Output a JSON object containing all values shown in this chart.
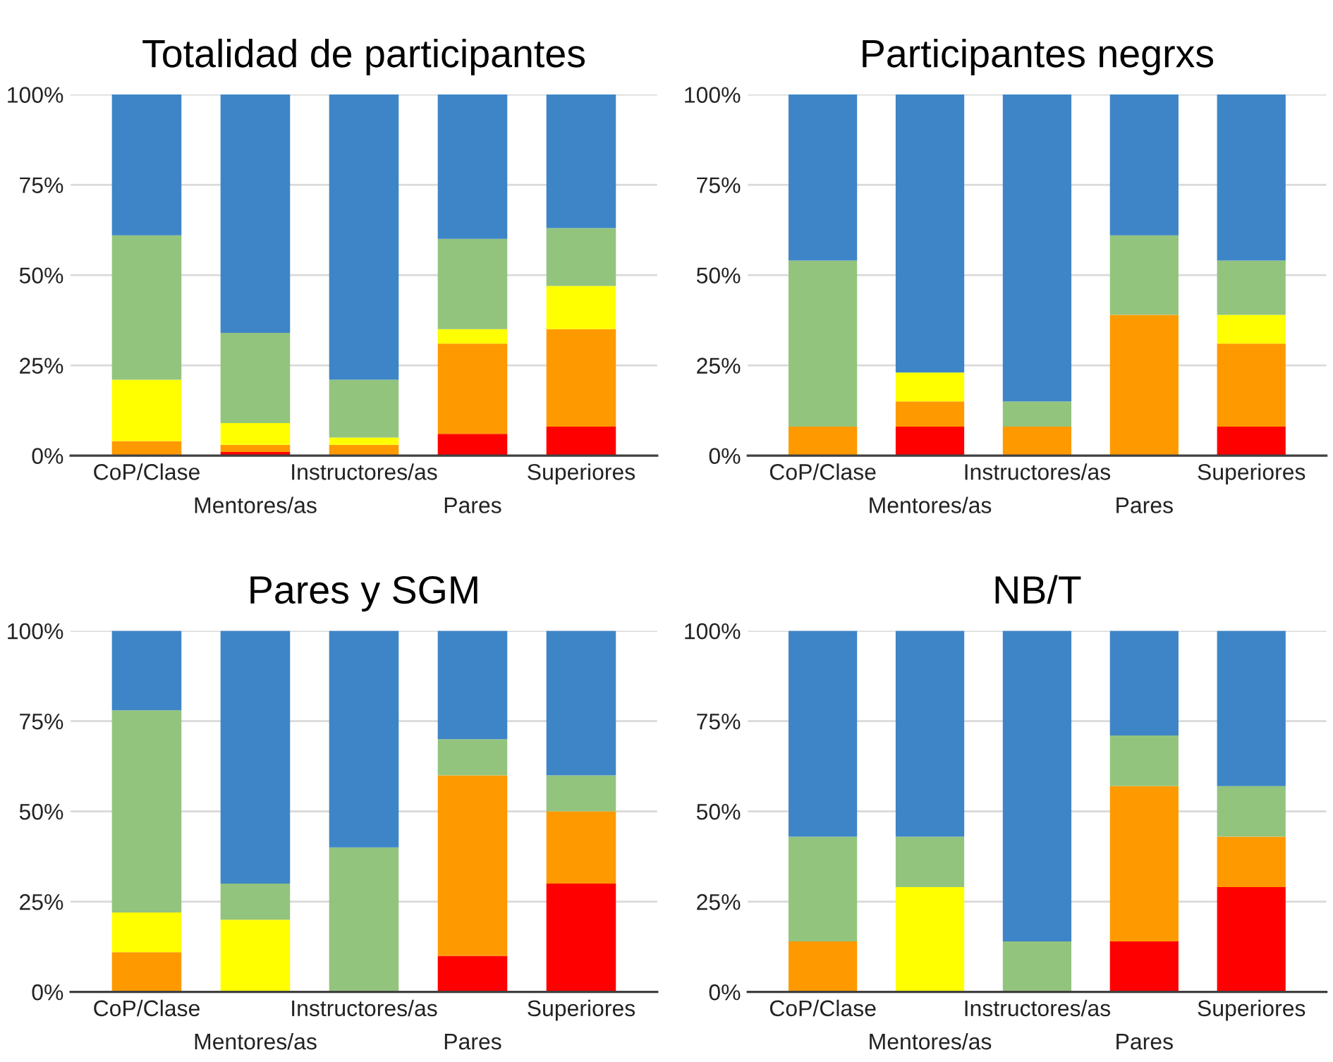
{
  "chart_data": [
    {
      "type": "bar",
      "stacked": true,
      "title": "Totalidad de participantes",
      "categories": [
        "CoP/Clase",
        "Mentores/as",
        "Instructores/as",
        "Pares",
        "Superiores"
      ],
      "ylim": [
        0,
        100
      ],
      "yticks": [
        {
          "value": 0,
          "label": "0%"
        },
        {
          "value": 25,
          "label": "25%"
        },
        {
          "value": 50,
          "label": "50%"
        },
        {
          "value": 75,
          "label": "75%"
        },
        {
          "value": 100,
          "label": "100%"
        }
      ],
      "grid": "y",
      "series": [
        {
          "color": "#ff0000",
          "values": [
            0,
            1,
            0,
            6,
            8
          ]
        },
        {
          "color": "#ff9900",
          "values": [
            4,
            2,
            3,
            25,
            27
          ]
        },
        {
          "color": "#ffff00",
          "values": [
            17,
            6,
            2,
            4,
            12
          ]
        },
        {
          "color": "#93c47d",
          "values": [
            40,
            25,
            16,
            25,
            16
          ]
        },
        {
          "color": "#3d85c6",
          "values": [
            39,
            66,
            79,
            40,
            37
          ]
        }
      ]
    },
    {
      "type": "bar",
      "stacked": true,
      "title": "Participantes negrxs",
      "categories": [
        "CoP/Clase",
        "Mentores/as",
        "Instructores/as",
        "Pares",
        "Superiores"
      ],
      "ylim": [
        0,
        100
      ],
      "yticks": [
        {
          "value": 0,
          "label": "0%"
        },
        {
          "value": 25,
          "label": "25%"
        },
        {
          "value": 50,
          "label": "50%"
        },
        {
          "value": 75,
          "label": "75%"
        },
        {
          "value": 100,
          "label": "100%"
        }
      ],
      "grid": "y",
      "series": [
        {
          "color": "#ff0000",
          "values": [
            0,
            8,
            0,
            0,
            8
          ]
        },
        {
          "color": "#ff9900",
          "values": [
            8,
            7,
            8,
            39,
            23
          ]
        },
        {
          "color": "#ffff00",
          "values": [
            0,
            8,
            0,
            0,
            8
          ]
        },
        {
          "color": "#93c47d",
          "values": [
            46,
            0,
            7,
            22,
            15
          ]
        },
        {
          "color": "#3d85c6",
          "values": [
            46,
            77,
            85,
            39,
            46
          ]
        }
      ]
    },
    {
      "type": "bar",
      "stacked": true,
      "title": "Pares y SGM",
      "categories": [
        "CoP/Clase",
        "Mentores/as",
        "Instructores/as",
        "Pares",
        "Superiores"
      ],
      "ylim": [
        0,
        100
      ],
      "yticks": [
        {
          "value": 0,
          "label": "0%"
        },
        {
          "value": 25,
          "label": "25%"
        },
        {
          "value": 50,
          "label": "50%"
        },
        {
          "value": 75,
          "label": "75%"
        },
        {
          "value": 100,
          "label": "100%"
        }
      ],
      "grid": "y",
      "series": [
        {
          "color": "#ff0000",
          "values": [
            0,
            0,
            0,
            10,
            30
          ]
        },
        {
          "color": "#ff9900",
          "values": [
            11,
            0,
            0,
            50,
            20
          ]
        },
        {
          "color": "#ffff00",
          "values": [
            11,
            20,
            0,
            0,
            0
          ]
        },
        {
          "color": "#93c47d",
          "values": [
            56,
            10,
            40,
            10,
            10
          ]
        },
        {
          "color": "#3d85c6",
          "values": [
            22,
            70,
            60,
            30,
            40
          ]
        }
      ]
    },
    {
      "type": "bar",
      "stacked": true,
      "title": "NB/T",
      "categories": [
        "CoP/Clase",
        "Mentores/as",
        "Instructores/as",
        "Pares",
        "Superiores"
      ],
      "ylim": [
        0,
        100
      ],
      "yticks": [
        {
          "value": 0,
          "label": "0%"
        },
        {
          "value": 25,
          "label": "25%"
        },
        {
          "value": 50,
          "label": "50%"
        },
        {
          "value": 75,
          "label": "75%"
        },
        {
          "value": 100,
          "label": "100%"
        }
      ],
      "grid": "y",
      "series": [
        {
          "color": "#ff0000",
          "values": [
            0,
            0,
            0,
            14,
            29
          ]
        },
        {
          "color": "#ff9900",
          "values": [
            14,
            0,
            0,
            43,
            14
          ]
        },
        {
          "color": "#ffff00",
          "values": [
            0,
            29,
            0,
            0,
            0
          ]
        },
        {
          "color": "#93c47d",
          "values": [
            29,
            14,
            14,
            14,
            14
          ]
        },
        {
          "color": "#3d85c6",
          "values": [
            57,
            57,
            86,
            29,
            43
          ]
        }
      ]
    }
  ]
}
